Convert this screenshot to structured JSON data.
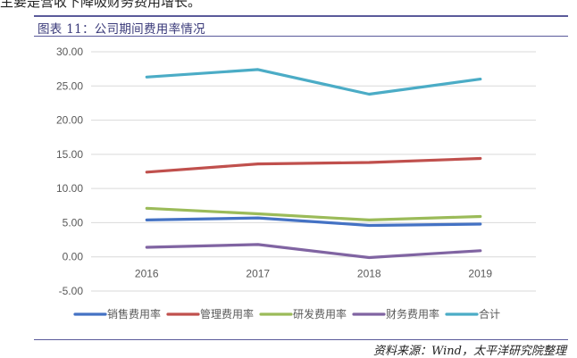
{
  "page": {
    "top_fragment": "主要是营收下降吸财务费用增长。",
    "source": "资料来源：Wind，太平洋研究院整理"
  },
  "chart_data": {
    "type": "line",
    "title": "图表 11：公司期间费用率情况",
    "categories": [
      "2016",
      "2017",
      "2018",
      "2019"
    ],
    "y_ticks": [
      "30.00",
      "25.00",
      "20.00",
      "15.00",
      "10.00",
      "5.00",
      "0.00",
      "-5.00"
    ],
    "ylim": [
      -5,
      30
    ],
    "grid": true,
    "legend_position": "bottom",
    "series": [
      {
        "name": "销售费用率",
        "color": "#4472c4",
        "values": [
          5.4,
          5.7,
          4.6,
          4.8
        ]
      },
      {
        "name": "管理费用率",
        "color": "#c0504d",
        "values": [
          12.4,
          13.6,
          13.8,
          14.4
        ]
      },
      {
        "name": "研发费用率",
        "color": "#9bbb59",
        "values": [
          7.1,
          6.3,
          5.4,
          5.9
        ]
      },
      {
        "name": "财务费用率",
        "color": "#8064a2",
        "values": [
          1.4,
          1.8,
          -0.1,
          0.9
        ]
      },
      {
        "name": "合计",
        "color": "#4bacc6",
        "values": [
          26.3,
          27.4,
          23.8,
          26.0
        ]
      }
    ]
  }
}
